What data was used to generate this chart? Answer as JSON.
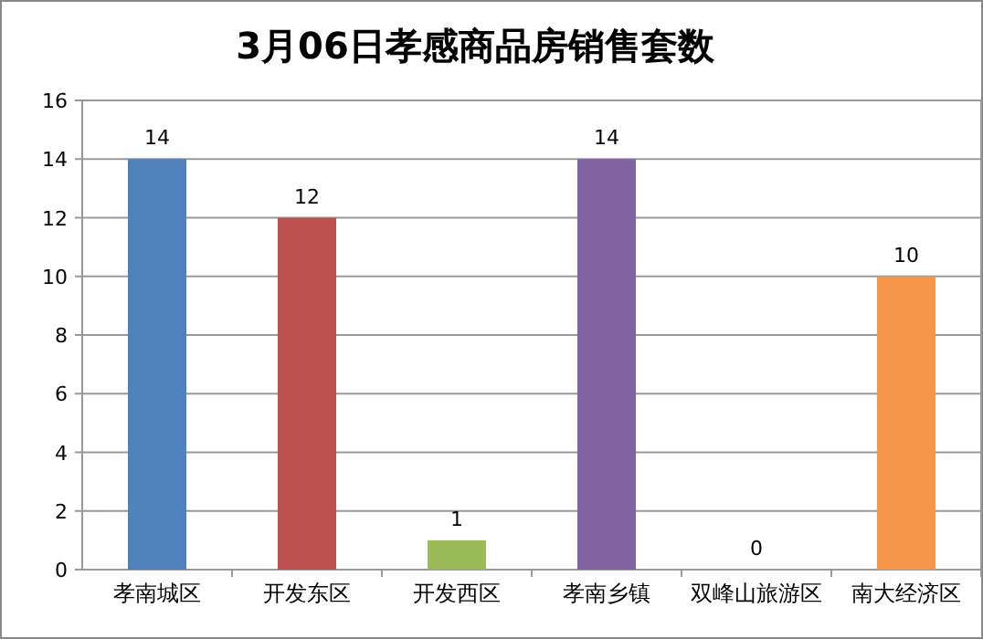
{
  "chart_data": {
    "type": "bar",
    "title": "3月06日孝感商品房销售套数",
    "categories": [
      "孝南城区",
      "开发东区",
      "开发西区",
      "孝南乡镇",
      "双峰山旅游区",
      "南大经济区"
    ],
    "values": [
      14,
      12,
      1,
      14,
      0,
      10
    ],
    "colors": [
      "#4f81bd",
      "#c0504d",
      "#9bbb59",
      "#8064a2",
      "#4bacc6",
      "#f79646"
    ],
    "ylim": [
      0,
      16
    ],
    "yticks": [
      0,
      2,
      4,
      6,
      8,
      10,
      12,
      14,
      16
    ],
    "grid": "y",
    "data_labels": true
  }
}
